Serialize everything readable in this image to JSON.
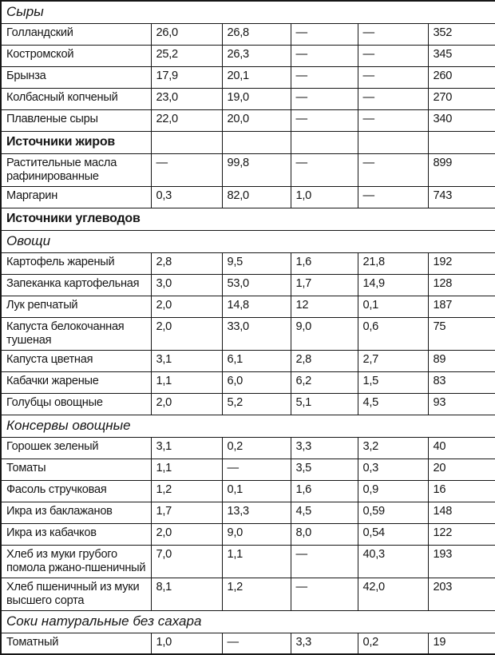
{
  "colors": {
    "border": "#161616",
    "text": "#161616",
    "background": "#ffffff"
  },
  "dash": "—",
  "table": {
    "rows": [
      {
        "kind": "section",
        "style": "italic",
        "label": "Сыры"
      },
      {
        "kind": "item",
        "name": "Голландский",
        "values": [
          "26,0",
          "26,8",
          "—",
          "—",
          "352"
        ]
      },
      {
        "kind": "item",
        "name": "Костромской",
        "values": [
          "25,2",
          "26,3",
          "—",
          "—",
          "345"
        ]
      },
      {
        "kind": "item",
        "name": "Брынза",
        "values": [
          "17,9",
          "20,1",
          "—",
          "—",
          "260"
        ]
      },
      {
        "kind": "item",
        "name": "Колбасный копченый",
        "values": [
          "23,0",
          "19,0",
          "—",
          "—",
          "270"
        ]
      },
      {
        "kind": "item",
        "name": "Плавленые сыры",
        "values": [
          "22,0",
          "20,0",
          "—",
          "—",
          "340"
        ]
      },
      {
        "kind": "section",
        "style": "bold-cells",
        "label": "Источники жиров"
      },
      {
        "kind": "item",
        "name": "Растительные масла рафинированные",
        "values": [
          "—",
          "99,8",
          "—",
          "—",
          "899"
        ]
      },
      {
        "kind": "item",
        "name": "Маргарин",
        "values": [
          "0,3",
          "82,0",
          "1,0",
          "—",
          "743"
        ]
      },
      {
        "kind": "section",
        "style": "bold",
        "label": "Источники углеводов"
      },
      {
        "kind": "section",
        "style": "italic",
        "label": "Овощи"
      },
      {
        "kind": "item",
        "name": "Картофель жареный",
        "values": [
          "2,8",
          "9,5",
          "1,6",
          "21,8",
          "192"
        ]
      },
      {
        "kind": "item",
        "name": "Запеканка картофельная",
        "values": [
          "3,0",
          "53,0",
          "1,7",
          "14,9",
          "128"
        ]
      },
      {
        "kind": "item",
        "name": "Лук репчатый",
        "values": [
          "2,0",
          "14,8",
          "12",
          "0,1",
          "187"
        ]
      },
      {
        "kind": "item",
        "name": "Капуста белокочанная тушеная",
        "values": [
          "2,0",
          "33,0",
          "9,0",
          "0,6",
          "75"
        ]
      },
      {
        "kind": "item",
        "name": "Капуста цветная",
        "values": [
          "3,1",
          "6,1",
          "2,8",
          "2,7",
          "89"
        ]
      },
      {
        "kind": "item",
        "name": "Кабачки жареные",
        "values": [
          "1,1",
          "6,0",
          "6,2",
          "1,5",
          "83"
        ]
      },
      {
        "kind": "item",
        "name": "Голубцы овощные",
        "values": [
          "2,0",
          "5,2",
          "5,1",
          "4,5",
          "93"
        ]
      },
      {
        "kind": "section",
        "style": "italic",
        "label": "Консервы овощные"
      },
      {
        "kind": "item",
        "name": "Горошек зеленый",
        "values": [
          "3,1",
          "0,2",
          "3,3",
          "3,2",
          "40"
        ]
      },
      {
        "kind": "item",
        "name": "Томаты",
        "values": [
          "1,1",
          "—",
          "3,5",
          "0,3",
          "20"
        ]
      },
      {
        "kind": "item",
        "name": "Фасоль стручковая",
        "values": [
          "1,2",
          "0,1",
          "1,6",
          "0,9",
          "16"
        ]
      },
      {
        "kind": "item",
        "name": "Икра из баклажанов",
        "values": [
          "1,7",
          "13,3",
          "4,5",
          "0,59",
          "148"
        ]
      },
      {
        "kind": "item",
        "name": "Икра из кабачков",
        "values": [
          "2,0",
          "9,0",
          "8,0",
          "0,54",
          "122"
        ]
      },
      {
        "kind": "item",
        "name": "Хлеб из муки грубого помола ржано-пшеничный",
        "values": [
          "7,0",
          "1,1",
          "—",
          "40,3",
          "193"
        ]
      },
      {
        "kind": "item",
        "name": "Хлеб пшеничный из муки высшего сорта",
        "values": [
          "8,1",
          "1,2",
          "—",
          "42,0",
          "203"
        ]
      },
      {
        "kind": "section",
        "style": "italic",
        "label": "Соки натуральные без сахара"
      },
      {
        "kind": "item",
        "name": "Томатный",
        "values": [
          "1,0",
          "—",
          "3,3",
          "0,2",
          "19"
        ]
      }
    ]
  }
}
